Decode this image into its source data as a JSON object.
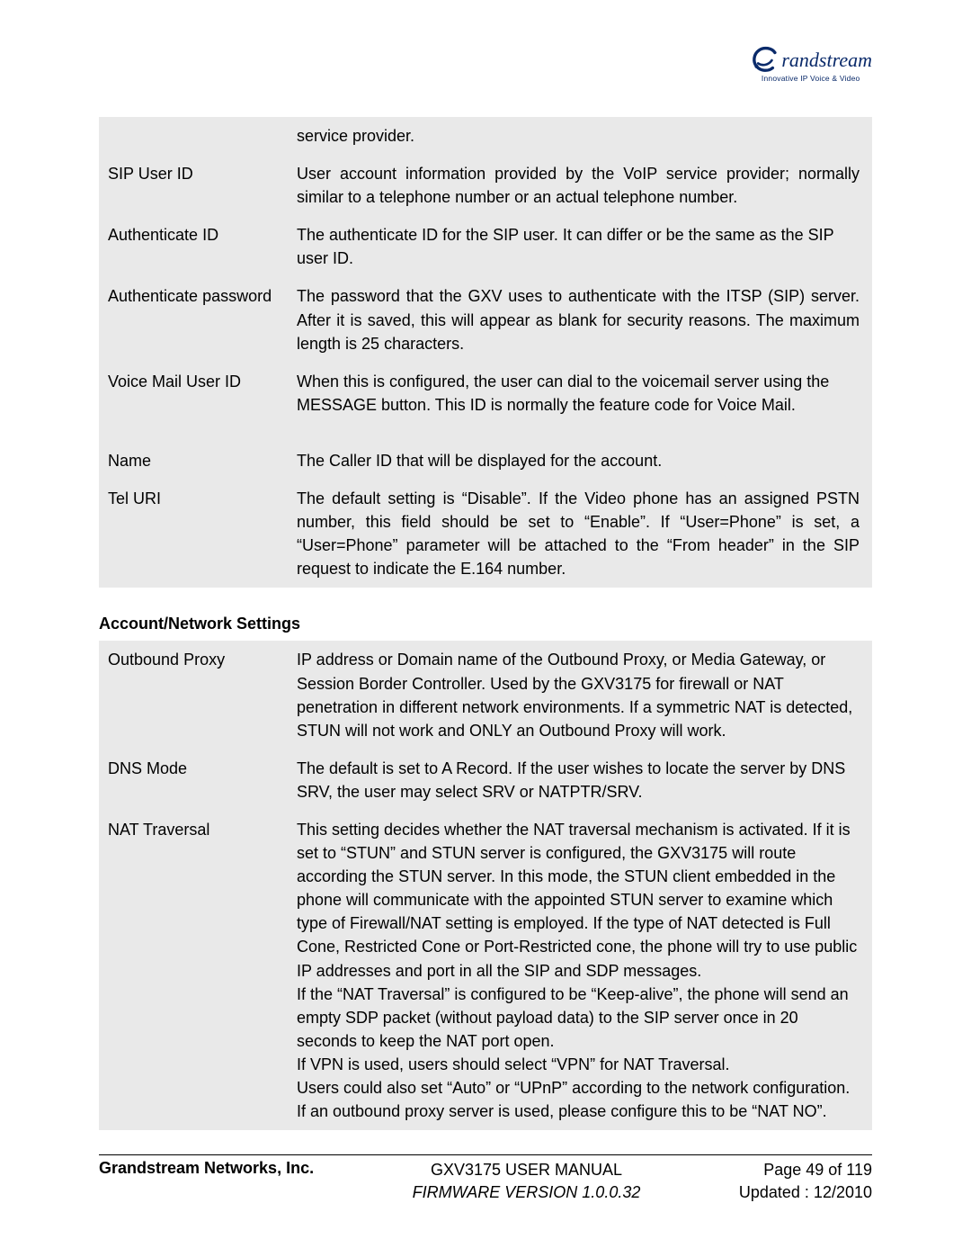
{
  "logo": {
    "brand_prefix": "G",
    "brand_rest": "randstream",
    "tagline": "Innovative IP Voice & Video",
    "color": "#0a2a6a"
  },
  "table1": {
    "rows": [
      {
        "label": "",
        "desc": "service provider."
      },
      {
        "label": "SIP User ID",
        "desc": "User account information provided by the VoIP service provider; normally similar to a telephone number or an actual telephone number.",
        "justify": true
      },
      {
        "label": "Authenticate ID",
        "desc": "The authenticate ID for the SIP user. It can differ or be the same as the SIP user ID."
      },
      {
        "label": "Authenticate password",
        "desc": "The password that the GXV uses to authenticate with the ITSP (SIP) server. After it is saved, this will appear as blank for security reasons. The maximum length is 25 characters.",
        "justify": true
      },
      {
        "label": "Voice Mail User ID",
        "desc": "When this is configured, the user can dial to the voicemail server using the MESSAGE button. This ID is normally the feature code for Voice Mail.",
        "pad_bottom": true
      },
      {
        "label": "Name",
        "desc": "The Caller ID that will be displayed for the account."
      },
      {
        "label": "Tel URI",
        "desc": "The default setting is “Disable”. If the Video phone has an assigned PSTN number, this field should be set to “Enable”. If “User=Phone” is set, a “User=Phone” parameter will be attached to the “From header” in the SIP request to indicate the E.164 number.",
        "justify": true
      }
    ]
  },
  "section_heading": "Account/Network Settings",
  "table2": {
    "rows": [
      {
        "label": "Outbound Proxy",
        "desc": "IP address or Domain name of the Outbound Proxy, or Media Gateway, or Session Border Controller. Used by the GXV3175 for firewall or NAT penetration in different network environments. If a symmetric NAT is detected, STUN will not work and ONLY an Outbound Proxy will work."
      },
      {
        "label": "DNS Mode",
        "desc": "The default is set to A Record. If the user wishes to locate the server by DNS SRV, the user may select SRV or NATPTR/SRV."
      },
      {
        "label": "NAT Traversal",
        "desc": "This setting decides whether the NAT traversal mechanism is activated. If it is set to “STUN” and STUN server is configured, the GXV3175 will route according the STUN server. In this mode, the STUN client embedded in the phone will communicate with the appointed STUN server to examine which type of Firewall/NAT setting is employed. If the type of NAT detected is Full Cone, Restricted Cone or Port-Restricted cone, the phone will try to use public IP addresses and port in all the SIP and SDP messages.\nIf the “NAT Traversal” is configured to be “Keep-alive”, the phone will send an empty SDP packet (without payload data) to the SIP server once in 20 seconds to keep the NAT port open.\nIf VPN is used, users should select “VPN” for NAT Traversal.\nUsers could also set “Auto” or “UPnP” according to the network configuration.\nIf an outbound proxy server is used, please configure this to be “NAT NO”."
      }
    ]
  },
  "footer": {
    "company": "Grandstream Networks, Inc.",
    "manual": "GXV3175 USER MANUAL",
    "firmware": "FIRMWARE VERSION 1.0.0.32",
    "page": "Page 49 of 119",
    "updated": "Updated : 12/2010"
  }
}
